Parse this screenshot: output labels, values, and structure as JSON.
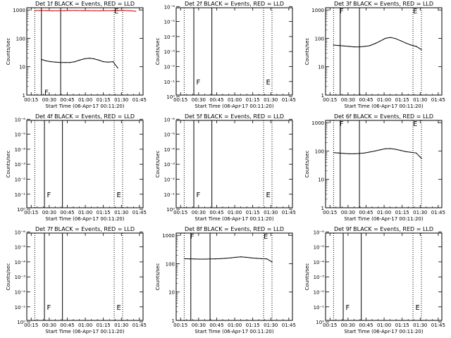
{
  "x_ticks": [
    "00:15",
    "00:30",
    "00:45",
    "01:00",
    "01:15",
    "01:30",
    "01:45"
  ],
  "x_label": "Start Time (06-Apr-17 00:11:20)",
  "y_label": "Counts/sec",
  "colors": {
    "events": "#000000",
    "lld": "#cc0000",
    "axis": "#000000"
  },
  "chart_data": [
    {
      "type": "line",
      "title": "Det 1f BLACK = Events, RED = LLD",
      "ylog": true,
      "ylim": [
        1,
        1200
      ],
      "y_ticks": [
        "1",
        "10",
        "100",
        "1000"
      ],
      "x_range_min": [
        11.33,
        108
      ],
      "solid_lines_min": [
        23.5,
        39.5
      ],
      "dotted_lines_min": [
        18,
        84,
        91
      ],
      "markers": [
        {
          "label": "F",
          "x_min": 26,
          "y": 1.3
        },
        {
          "label": "E",
          "x_min": 84,
          "y": 950
        }
      ],
      "series": [
        {
          "name": "Events",
          "color": "#000000",
          "start_min": 23.5,
          "end_min": 87,
          "values": [
            18,
            16,
            15,
            14.5,
            14,
            14,
            14,
            15,
            17,
            19,
            20,
            19,
            17,
            15,
            14.5,
            15,
            9
          ]
        },
        {
          "name": "LLD",
          "color": "#cc0000",
          "start_min": 18,
          "end_min": 102,
          "values": [
            950,
            960,
            950,
            940,
            940,
            950,
            960,
            960,
            950,
            950,
            940,
            940,
            950,
            950,
            960,
            960,
            950,
            900
          ]
        }
      ]
    },
    {
      "type": "line",
      "title": "Det 2f BLACK = Events, RED = LLD",
      "ylog": true,
      "ylim": [
        0.8,
        1.2e-06
      ],
      "y_ticks": [
        "10⁰",
        "10⁻¹",
        "10⁻²",
        "10⁻³",
        "10⁻⁴",
        "10⁻⁵",
        "10⁻⁶"
      ],
      "x_range_min": [
        11.33,
        108
      ],
      "solid_lines_min": [
        26,
        41
      ],
      "dotted_lines_min": [
        18,
        84,
        91
      ],
      "markers": [
        {
          "label": "F",
          "x_min": 28,
          "y": 0.1
        },
        {
          "label": "E",
          "x_min": 86,
          "y": 0.1
        }
      ],
      "series": []
    },
    {
      "type": "line",
      "title": "Det 3f BLACK = Events, RED = LLD",
      "ylog": true,
      "ylim": [
        1,
        1200
      ],
      "y_ticks": [
        "1",
        "10",
        "100",
        "1000"
      ],
      "x_range_min": [
        11.33,
        108
      ],
      "solid_lines_min": [
        23.5,
        39.5
      ],
      "dotted_lines_min": [
        18,
        84,
        91
      ],
      "markers": [
        {
          "label": "F",
          "x_min": 23,
          "y": 950
        },
        {
          "label": "E",
          "x_min": 84,
          "y": 950
        }
      ],
      "series": [
        {
          "name": "Events",
          "color": "#000000",
          "start_min": 18,
          "end_min": 91,
          "values": [
            58,
            56,
            54,
            52,
            50,
            50,
            52,
            55,
            65,
            80,
            100,
            108,
            98,
            82,
            68,
            58,
            52,
            40
          ]
        }
      ]
    },
    {
      "type": "line",
      "title": "Det 4f BLACK = Events, RED = LLD",
      "ylog": true,
      "ylim": [
        0.8,
        1.2e-06
      ],
      "y_ticks": [
        "10⁰",
        "10⁻¹",
        "10⁻²",
        "10⁻³",
        "10⁻⁴",
        "10⁻⁵",
        "10⁻⁶"
      ],
      "x_range_min": [
        11.33,
        108
      ],
      "solid_lines_min": [
        26,
        41
      ],
      "dotted_lines_min": [
        18,
        84,
        91
      ],
      "markers": [
        {
          "label": "F",
          "x_min": 28,
          "y": 0.1
        },
        {
          "label": "E",
          "x_min": 86,
          "y": 0.1
        }
      ],
      "series": []
    },
    {
      "type": "line",
      "title": "Det 5f BLACK = Events, RED = LLD",
      "ylog": true,
      "ylim": [
        0.8,
        1.2e-06
      ],
      "y_ticks": [
        "10⁰",
        "10⁻¹",
        "10⁻²",
        "10⁻³",
        "10⁻⁴",
        "10⁻⁵",
        "10⁻⁶"
      ],
      "x_range_min": [
        11.33,
        108
      ],
      "solid_lines_min": [
        26,
        41
      ],
      "dotted_lines_min": [
        18,
        84,
        91
      ],
      "markers": [
        {
          "label": "F",
          "x_min": 28,
          "y": 0.1
        },
        {
          "label": "E",
          "x_min": 86,
          "y": 0.1
        }
      ],
      "series": []
    },
    {
      "type": "line",
      "title": "Det 6f BLACK = Events, RED = LLD",
      "ylog": true,
      "ylim": [
        1,
        1200
      ],
      "y_ticks": [
        "1",
        "10",
        "100",
        "1000"
      ],
      "x_range_min": [
        11.33,
        108
      ],
      "solid_lines_min": [
        23.5,
        39.5
      ],
      "dotted_lines_min": [
        18,
        84,
        91
      ],
      "markers": [
        {
          "label": "F",
          "x_min": 23,
          "y": 950
        },
        {
          "label": "E",
          "x_min": 84,
          "y": 950
        }
      ],
      "series": [
        {
          "name": "Events",
          "color": "#000000",
          "start_min": 18,
          "end_min": 91,
          "values": [
            88,
            85,
            82,
            80,
            80,
            82,
            85,
            92,
            100,
            110,
            120,
            122,
            115,
            105,
            95,
            90,
            85,
            55
          ]
        }
      ]
    },
    {
      "type": "line",
      "title": "Det 7f BLACK = Events, RED = LLD",
      "ylog": true,
      "ylim": [
        0.8,
        1.2e-06
      ],
      "y_ticks": [
        "10⁰",
        "10⁻¹",
        "10⁻²",
        "10⁻³",
        "10⁻⁴",
        "10⁻⁵",
        "10⁻⁶"
      ],
      "x_range_min": [
        11.33,
        108
      ],
      "solid_lines_min": [
        26,
        41
      ],
      "dotted_lines_min": [
        18,
        84,
        91
      ],
      "markers": [
        {
          "label": "F",
          "x_min": 28,
          "y": 0.1
        },
        {
          "label": "E",
          "x_min": 86,
          "y": 0.1
        }
      ],
      "series": []
    },
    {
      "type": "line",
      "title": "Det 8f BLACK = Events, RED = LLD",
      "ylog": true,
      "ylim": [
        1,
        1200
      ],
      "y_ticks": [
        "1",
        "10",
        "100",
        "1000"
      ],
      "x_range_min": [
        11.33,
        108
      ],
      "solid_lines_min": [
        23.5,
        39.5
      ],
      "dotted_lines_min": [
        18,
        84,
        91
      ],
      "markers": [
        {
          "label": "F",
          "x_min": 23,
          "y": 950
        },
        {
          "label": "E",
          "x_min": 84,
          "y": 950
        }
      ],
      "series": [
        {
          "name": "Events",
          "color": "#000000",
          "start_min": 18,
          "end_min": 91,
          "values": [
            150,
            148,
            146,
            145,
            145,
            146,
            148,
            150,
            155,
            160,
            168,
            175,
            168,
            160,
            155,
            150,
            148,
            115
          ]
        }
      ]
    },
    {
      "type": "line",
      "title": "Det 9f BLACK = Events, RED = LLD",
      "ylog": true,
      "ylim": [
        0.8,
        1.2e-06
      ],
      "y_ticks": [
        "10⁰",
        "10⁻¹",
        "10⁻²",
        "10⁻³",
        "10⁻⁴",
        "10⁻⁵",
        "10⁻⁶"
      ],
      "x_range_min": [
        11.33,
        108
      ],
      "solid_lines_min": [
        26,
        41
      ],
      "dotted_lines_min": [
        18,
        84,
        91
      ],
      "markers": [
        {
          "label": "F",
          "x_min": 28,
          "y": 0.1
        },
        {
          "label": "E",
          "x_min": 86,
          "y": 0.1
        }
      ],
      "series": []
    }
  ]
}
